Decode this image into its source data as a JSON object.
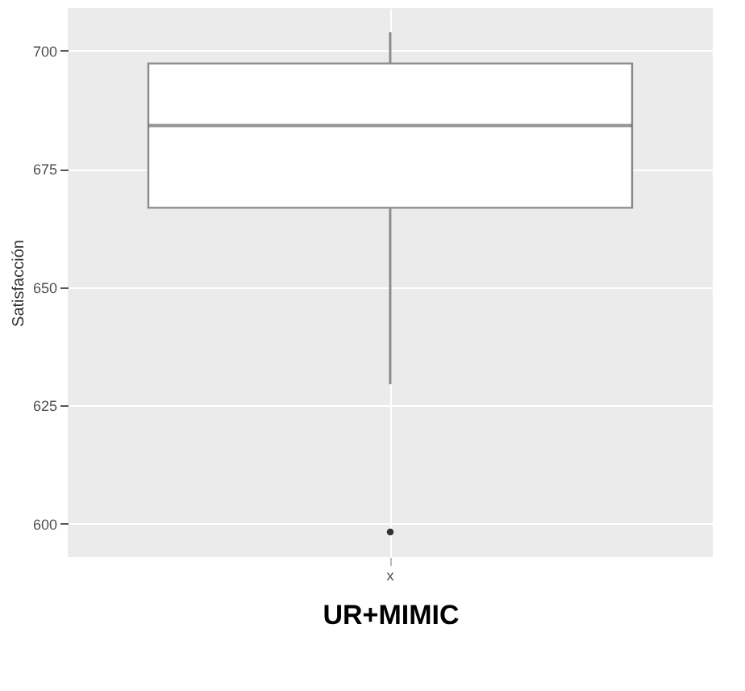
{
  "chart_data": {
    "type": "box",
    "categories": [
      "x"
    ],
    "xlabel": "UR+MIMIC",
    "ylabel": "Satisfacción",
    "boxes": [
      {
        "low": 629.5,
        "q1": 666.8,
        "median": 684.2,
        "q3": 697.3,
        "high": 703.9,
        "outliers": [
          598.3
        ]
      }
    ],
    "ylim": [
      593,
      709
    ],
    "yticks": [
      600,
      625,
      650,
      675,
      700
    ],
    "grid": true
  }
}
